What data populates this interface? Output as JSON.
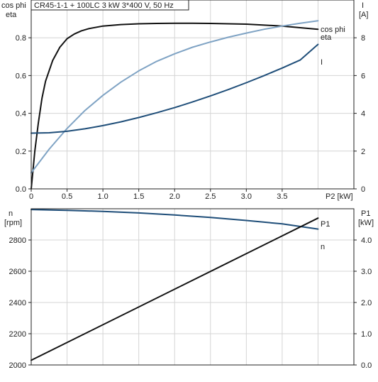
{
  "chart_data": [
    {
      "type": "line",
      "title": "CR45-1-1 + 100LC   3 kW   3*400 V, 50 Hz",
      "x_axis": {
        "label": "P2 [kW]",
        "range": [
          0,
          4.5
        ],
        "ticks": [
          0,
          0.5,
          1.0,
          1.5,
          2.0,
          2.5,
          3.0,
          3.5
        ],
        "tick_labels": [
          "0",
          "0.5",
          "1.0",
          "1.5",
          "2.0",
          "2.5",
          "3.0",
          "3.5"
        ]
      },
      "y_axis_left": {
        "label_line1": "cos phi",
        "label_line2": "eta",
        "range": [
          0,
          1.0
        ],
        "ticks": [
          0,
          0.2,
          0.4,
          0.6,
          0.8
        ],
        "tick_labels": [
          "0.0",
          "0.2",
          "0.4",
          "0.6",
          "0.8"
        ]
      },
      "y_axis_right": {
        "label_line1": "I",
        "label_line2": "[A]",
        "range": [
          0,
          10
        ],
        "ticks": [
          0,
          2,
          4,
          6,
          8
        ],
        "tick_labels": [
          "0",
          "2",
          "4",
          "6",
          "8"
        ]
      },
      "grid": true,
      "series": [
        {
          "name": "eta",
          "axis": "left",
          "color": "#111111",
          "x": [
            0.0,
            0.05,
            0.1,
            0.15,
            0.2,
            0.3,
            0.4,
            0.5,
            0.6,
            0.7,
            0.8,
            1.0,
            1.25,
            1.5,
            1.75,
            2.0,
            2.25,
            2.5,
            3.0,
            3.5,
            4.0
          ],
          "y": [
            0.0,
            0.2,
            0.35,
            0.48,
            0.57,
            0.68,
            0.75,
            0.795,
            0.82,
            0.837,
            0.848,
            0.862,
            0.87,
            0.874,
            0.876,
            0.877,
            0.877,
            0.876,
            0.872,
            0.862,
            0.845
          ]
        },
        {
          "name": "cos phi",
          "axis": "left",
          "color": "#7fa3c4",
          "x": [
            0.0,
            0.25,
            0.5,
            0.75,
            1.0,
            1.25,
            1.5,
            1.75,
            2.0,
            2.25,
            2.5,
            2.75,
            3.0,
            3.25,
            3.5,
            3.75,
            4.0
          ],
          "y": [
            0.085,
            0.21,
            0.32,
            0.415,
            0.495,
            0.565,
            0.625,
            0.675,
            0.715,
            0.75,
            0.778,
            0.803,
            0.825,
            0.845,
            0.862,
            0.877,
            0.89
          ]
        },
        {
          "name": "I",
          "axis": "right",
          "color": "#1f4e79",
          "x": [
            0.0,
            0.25,
            0.5,
            0.75,
            1.0,
            1.25,
            1.5,
            1.75,
            2.0,
            2.25,
            2.5,
            2.75,
            3.0,
            3.25,
            3.5,
            3.75,
            4.0
          ],
          "y": [
            2.95,
            2.97,
            3.05,
            3.18,
            3.35,
            3.55,
            3.78,
            4.03,
            4.3,
            4.6,
            4.92,
            5.26,
            5.62,
            6.0,
            6.4,
            6.82,
            7.65
          ]
        }
      ]
    },
    {
      "type": "line",
      "x_axis": {
        "label": "P2 [kW]",
        "range": [
          0,
          4.5
        ]
      },
      "y_axis_left": {
        "label_line1": "n",
        "label_line2": "[rpm]",
        "range": [
          2000,
          3000
        ],
        "ticks": [
          2000,
          2200,
          2400,
          2600,
          2800
        ],
        "tick_labels": [
          "2000",
          "2200",
          "2400",
          "2600",
          "2800"
        ]
      },
      "y_axis_right": {
        "label_line1": "P1",
        "label_line2": "[kW]",
        "range": [
          0,
          5.0
        ],
        "ticks": [
          0,
          1.0,
          2.0,
          3.0,
          4.0
        ],
        "tick_labels": [
          "0.0",
          "1.0",
          "2.0",
          "3.0",
          "4.0"
        ]
      },
      "grid": true,
      "series": [
        {
          "name": "n",
          "axis": "left",
          "color": "#1f4e79",
          "x": [
            0.0,
            0.5,
            1.0,
            1.5,
            2.0,
            2.5,
            3.0,
            3.5,
            4.0
          ],
          "y": [
            2995,
            2990,
            2983,
            2973,
            2960,
            2944,
            2925,
            2903,
            2870
          ]
        },
        {
          "name": "P1",
          "axis": "right",
          "color": "#111111",
          "x": [
            0.0,
            4.0
          ],
          "y": [
            0.15,
            4.7
          ]
        }
      ]
    }
  ]
}
